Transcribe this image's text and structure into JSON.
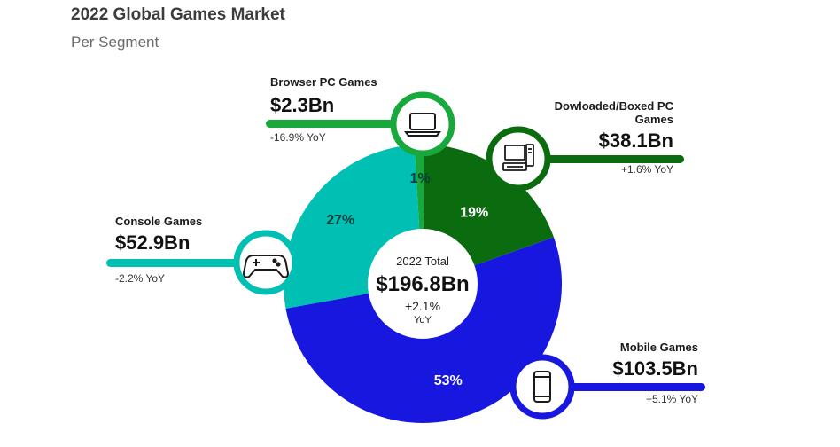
{
  "title": "2022 Global Games Market",
  "subtitle": "Per Segment",
  "center": {
    "label": "2022 Total",
    "value": "$196.8Bn",
    "yoy": "+2.1%",
    "yoy_unit": "YoY"
  },
  "chart_data": {
    "type": "pie",
    "donut": true,
    "title": "2022 Global Games Market",
    "subtitle": "Per Segment",
    "unit": "$Bn",
    "total": 196.8,
    "slices": [
      {
        "name": "Browser PC Games",
        "value": 2.3,
        "value_label": "$2.3Bn",
        "pct": 1,
        "pct_label": "1%",
        "yoy": "-16.9% YoY",
        "color": "#18a83c",
        "icon": "laptop-icon"
      },
      {
        "name": "Dowloaded/Boxed PC Games",
        "value": 38.1,
        "value_label": "$38.1Bn",
        "pct": 19,
        "pct_label": "19%",
        "yoy": "+1.6% YoY",
        "color": "#0b6b0f",
        "icon": "desktop-computer-icon"
      },
      {
        "name": "Mobile Games",
        "value": 103.5,
        "value_label": "$103.5Bn",
        "pct": 53,
        "pct_label": "53%",
        "yoy": "+5.1% YoY",
        "color": "#1717e0",
        "icon": "smartphone-icon"
      },
      {
        "name": "Console Games",
        "value": 52.9,
        "value_label": "$52.9Bn",
        "pct": 27,
        "pct_label": "27%",
        "yoy": "-2.2% YoY",
        "color": "#00bfb3",
        "icon": "gamepad-icon"
      }
    ]
  }
}
